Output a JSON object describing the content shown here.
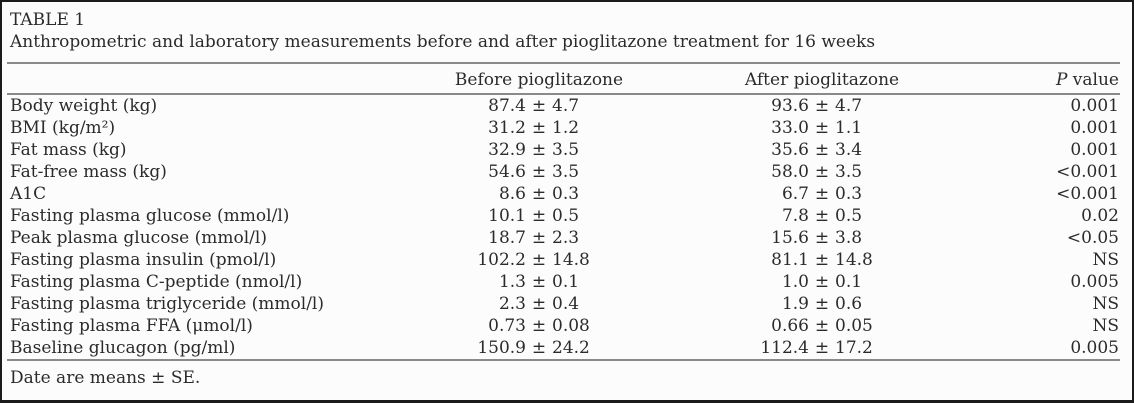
{
  "table": {
    "label": "TABLE 1",
    "caption": "Anthropometric and laboratory measurements before and after pioglitazone treatment for 16 weeks",
    "columns": {
      "before": "Before pioglitazone",
      "after": "After pioglitazone",
      "p_prefix": "P",
      "p_suffix": " value"
    },
    "plus_minus": "±",
    "rows": [
      {
        "parameter": "Body weight (kg)",
        "before_mean": "87.4",
        "before_sd": "4.7",
        "after_mean": "93.6",
        "after_sd": "4.7",
        "p": "0.001"
      },
      {
        "parameter": "BMI (kg/m²)",
        "before_mean": "31.2",
        "before_sd": "1.2",
        "after_mean": "33.0",
        "after_sd": "1.1",
        "p": "0.001"
      },
      {
        "parameter": "Fat mass (kg)",
        "before_mean": "32.9",
        "before_sd": "3.5",
        "after_mean": "35.6",
        "after_sd": "3.4",
        "p": "0.001"
      },
      {
        "parameter": "Fat-free mass (kg)",
        "before_mean": "54.6",
        "before_sd": "3.5",
        "after_mean": "58.0",
        "after_sd": "3.5",
        "p": "<0.001"
      },
      {
        "parameter": "A1C",
        "before_mean": "8.6",
        "before_sd": "0.3",
        "after_mean": "6.7",
        "after_sd": "0.3",
        "p": "<0.001"
      },
      {
        "parameter": "Fasting plasma glucose (mmol/l)",
        "before_mean": "10.1",
        "before_sd": "0.5",
        "after_mean": "7.8",
        "after_sd": "0.5",
        "p": "0.02"
      },
      {
        "parameter": "Peak plasma glucose (mmol/l)",
        "before_mean": "18.7",
        "before_sd": "2.3",
        "after_mean": "15.6",
        "after_sd": "3.8",
        "p": "<0.05"
      },
      {
        "parameter": "Fasting plasma insulin (pmol/l)",
        "before_mean": "102.2",
        "before_sd": "14.8",
        "after_mean": "81.1",
        "after_sd": "14.8",
        "p": "NS"
      },
      {
        "parameter": "Fasting plasma C-peptide (nmol/l)",
        "before_mean": "1.3",
        "before_sd": "0.1",
        "after_mean": "1.0",
        "after_sd": "0.1",
        "p": "0.005"
      },
      {
        "parameter": "Fasting plasma triglyceride (mmol/l)",
        "before_mean": "2.3",
        "before_sd": "0.4",
        "after_mean": "1.9",
        "after_sd": "0.6",
        "p": "NS"
      },
      {
        "parameter": "Fasting plasma FFA (μmol/l)",
        "before_mean": "0.73",
        "before_sd": "0.08",
        "after_mean": "0.66",
        "after_sd": "0.05",
        "p": "NS"
      },
      {
        "parameter": "Baseline glucagon (pg/ml)",
        "before_mean": "150.9",
        "before_sd": "24.2",
        "after_mean": "112.4",
        "after_sd": "17.2",
        "p": "0.005"
      }
    ],
    "footnote": "Date are means ± SE."
  },
  "colors": {
    "text": "#2b2b2b",
    "rule": "#8a8a8a",
    "border": "#1b1b1b",
    "background": "#fcfcfc"
  }
}
